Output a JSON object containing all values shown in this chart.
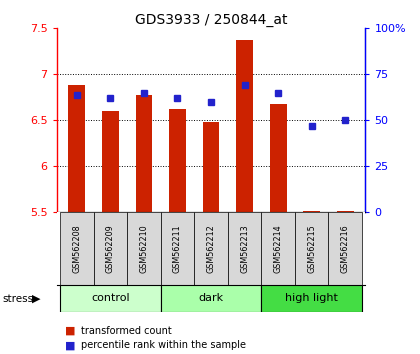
{
  "title": "GDS3933 / 250844_at",
  "samples": [
    "GSM562208",
    "GSM562209",
    "GSM562210",
    "GSM562211",
    "GSM562212",
    "GSM562213",
    "GSM562214",
    "GSM562215",
    "GSM562216"
  ],
  "transformed_counts": [
    6.88,
    6.6,
    6.78,
    6.62,
    6.48,
    7.37,
    6.68,
    5.52,
    5.52
  ],
  "percentile_ranks": [
    64,
    62,
    65,
    62,
    60,
    69,
    65,
    47,
    50
  ],
  "ylim_left": [
    5.5,
    7.5
  ],
  "ylim_right": [
    0,
    100
  ],
  "yticks_left": [
    5.5,
    6.0,
    6.5,
    7.0,
    7.5
  ],
  "yticks_right": [
    0,
    25,
    50,
    75,
    100
  ],
  "ytick_labels_right": [
    "0",
    "25",
    "50",
    "75",
    "100%"
  ],
  "ytick_labels_left": [
    "5.5",
    "6",
    "6.5",
    "7",
    "7.5"
  ],
  "bar_color": "#cc2200",
  "dot_color": "#2222cc",
  "bar_bottom": 5.5,
  "sample_bg": "#d8d8d8",
  "group_info": [
    {
      "name": "control",
      "start": 0,
      "end": 2,
      "color": "#ccffcc"
    },
    {
      "name": "dark",
      "start": 3,
      "end": 5,
      "color": "#aaffaa"
    },
    {
      "name": "high light",
      "start": 6,
      "end": 8,
      "color": "#44dd44"
    }
  ],
  "stress_label": "stress",
  "legend_tc": "transformed count",
  "legend_pr": "percentile rank within the sample",
  "grid_yticks": [
    6.0,
    6.5,
    7.0
  ]
}
